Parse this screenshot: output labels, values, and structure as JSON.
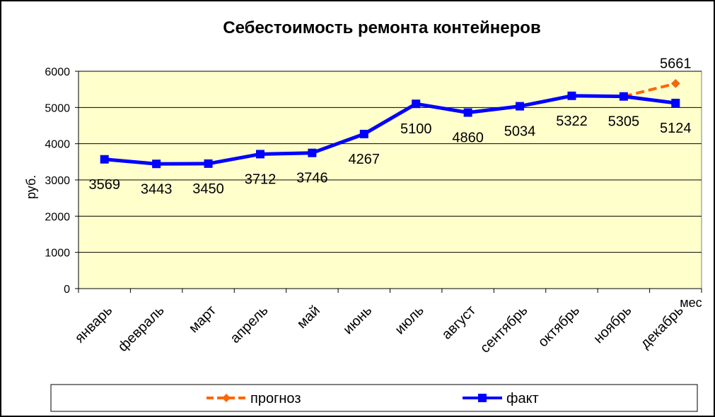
{
  "chart_data": {
    "type": "line",
    "title": "Себестоимость ремонта контейнеров",
    "xlabel": "мес",
    "ylabel": "руб.",
    "ylim": [
      0,
      6000
    ],
    "yticks": [
      0,
      1000,
      2000,
      3000,
      4000,
      5000,
      6000
    ],
    "grid": true,
    "legend_position": "bottom",
    "categories": [
      "январь",
      "февраль",
      "март",
      "апрель",
      "май",
      "июнь",
      "июль",
      "август",
      "сентябрь",
      "октябрь",
      "ноябрь",
      "декабрь"
    ],
    "series": [
      {
        "name": "прогноз",
        "color": "#FF6600",
        "marker": "diamond",
        "line_style": "dashed",
        "values": [
          null,
          null,
          null,
          null,
          null,
          null,
          null,
          null,
          null,
          null,
          5305,
          5661
        ],
        "labels": [
          null,
          null,
          null,
          null,
          null,
          null,
          null,
          null,
          null,
          null,
          null,
          "5661"
        ]
      },
      {
        "name": "факт",
        "color": "#0000FF",
        "marker": "square",
        "line_style": "solid",
        "values": [
          3569,
          3443,
          3450,
          3712,
          3746,
          4267,
          5100,
          4860,
          5034,
          5322,
          5305,
          5124
        ],
        "labels": [
          "3569",
          "3443",
          "3450",
          "3712",
          "3746",
          "4267",
          "5100",
          "4860",
          "5034",
          "5322",
          "5305",
          "5124"
        ]
      }
    ],
    "colors": {
      "plot_background": "#FFFFCC",
      "grid": "#000000"
    }
  }
}
